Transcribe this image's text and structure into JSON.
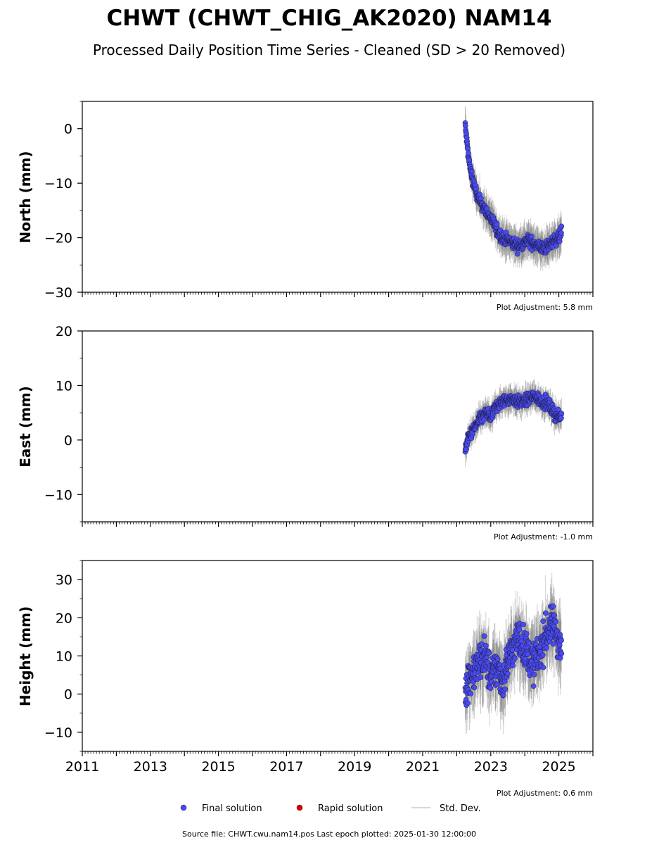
{
  "title": "CHWT (CHWT_CHIG_AK2020) NAM14",
  "subtitle": "Processed Daily Position Time Series - Cleaned (SD > 20 Removed)",
  "footer": "Source file: CHWT.cwu.nam14.pos  Last epoch plotted: 2025-01-30 12:00:00",
  "legend": {
    "final": "Final solution",
    "rapid": "Rapid solution",
    "std": "Std. Dev."
  },
  "colors": {
    "final": "#4a4af0",
    "final_edge": "#1a1a3a",
    "rapid": "#dd0000",
    "std": "#bbbbbb"
  },
  "x_ticks": [
    "2011",
    "2013",
    "2015",
    "2017",
    "2019",
    "2021",
    "2023",
    "2025"
  ],
  "panels": [
    {
      "ylabel": "North (mm)",
      "ticks": [
        "0",
        "−10",
        "−20",
        "−30"
      ],
      "adjustment": "Plot Adjustment: 5.8 mm"
    },
    {
      "ylabel": "East (mm)",
      "ticks": [
        "20",
        "10",
        "0",
        "−10"
      ],
      "adjustment": "Plot Adjustment: -1.0 mm"
    },
    {
      "ylabel": "Height (mm)",
      "ticks": [
        "30",
        "20",
        "10",
        "0",
        "−10"
      ],
      "adjustment": "Plot Adjustment: 0.6 mm"
    }
  ],
  "chart_data": [
    {
      "type": "scatter",
      "ylabel": "North (mm)",
      "xlim": [
        2011.0,
        2026.0
      ],
      "ylim": [
        -30,
        5
      ],
      "yticks": [
        0,
        -10,
        -20,
        -30
      ],
      "series": [
        {
          "name": "Final solution",
          "x": [
            2022.25,
            2022.3,
            2022.35,
            2022.4,
            2022.5,
            2022.6,
            2022.7,
            2022.8,
            2022.9,
            2023.0,
            2023.1,
            2023.2,
            2023.35,
            2023.5,
            2023.65,
            2023.8,
            2023.95,
            2024.1,
            2024.25,
            2024.4,
            2024.55,
            2024.7,
            2024.85,
            2025.0,
            2025.08
          ],
          "y": [
            0.5,
            -2.5,
            -5.5,
            -7.5,
            -10.0,
            -12.5,
            -13.5,
            -14.5,
            -15.5,
            -16.5,
            -17.5,
            -19.0,
            -20.0,
            -20.5,
            -21.0,
            -21.5,
            -21.0,
            -20.5,
            -21.0,
            -21.5,
            -22.0,
            -21.5,
            -20.5,
            -20.0,
            -19.0
          ]
        }
      ],
      "adjustment_mm": 5.8
    },
    {
      "type": "scatter",
      "ylabel": "East (mm)",
      "xlim": [
        2011.0,
        2026.0
      ],
      "ylim": [
        -15,
        20
      ],
      "yticks": [
        20,
        10,
        0,
        -10
      ],
      "series": [
        {
          "name": "Final solution",
          "x": [
            2022.25,
            2022.3,
            2022.35,
            2022.4,
            2022.5,
            2022.6,
            2022.7,
            2022.8,
            2022.9,
            2023.0,
            2023.1,
            2023.2,
            2023.35,
            2023.5,
            2023.65,
            2023.8,
            2023.95,
            2024.1,
            2024.25,
            2024.4,
            2024.55,
            2024.7,
            2024.85,
            2025.0,
            2025.08
          ],
          "y": [
            -1.5,
            -0.5,
            0.5,
            1.0,
            2.0,
            3.0,
            4.0,
            4.5,
            5.0,
            4.0,
            5.5,
            6.5,
            7.0,
            7.5,
            7.5,
            7.0,
            7.0,
            7.5,
            8.0,
            7.5,
            7.0,
            6.5,
            5.0,
            4.0,
            4.5
          ]
        }
      ],
      "adjustment_mm": -1.0
    },
    {
      "type": "scatter",
      "ylabel": "Height (mm)",
      "xlim": [
        2011.0,
        2026.0
      ],
      "ylim": [
        -15,
        35
      ],
      "yticks": [
        30,
        20,
        10,
        0,
        -10
      ],
      "series": [
        {
          "name": "Final solution",
          "x": [
            2022.25,
            2022.3,
            2022.35,
            2022.4,
            2022.5,
            2022.6,
            2022.7,
            2022.8,
            2022.9,
            2023.0,
            2023.1,
            2023.2,
            2023.35,
            2023.5,
            2023.65,
            2023.8,
            2023.95,
            2024.1,
            2024.25,
            2024.4,
            2024.55,
            2024.7,
            2024.85,
            2025.0,
            2025.08
          ],
          "y": [
            1.0,
            3.0,
            4.0,
            5.0,
            6.0,
            7.0,
            9.0,
            10.0,
            8.0,
            4.0,
            6.0,
            7.0,
            3.0,
            9.0,
            12.0,
            15.0,
            13.0,
            10.0,
            8.0,
            10.0,
            14.0,
            17.0,
            18.0,
            14.0,
            12.0
          ]
        }
      ],
      "adjustment_mm": 0.6
    }
  ]
}
